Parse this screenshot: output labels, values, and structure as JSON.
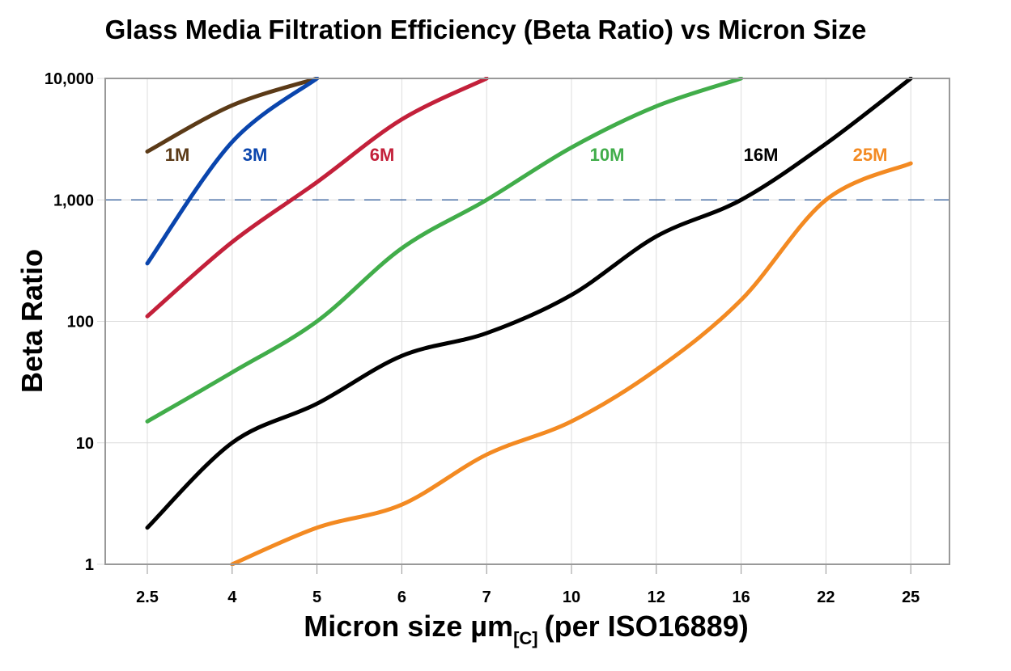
{
  "chart_data": {
    "type": "line",
    "title": "Glass Media Filtration Efficiency (Beta Ratio) vs Micron Size",
    "xlabel": "Micron size µm",
    "xlabel_subscript": "[C]",
    "xlabel_suffix": "(per ISO16889)",
    "ylabel": "Beta Ratio",
    "y_scale": "log",
    "ylim": [
      1,
      10000
    ],
    "categories": [
      "2.5",
      "4",
      "5",
      "6",
      "7",
      "10",
      "12",
      "16",
      "22",
      "25"
    ],
    "ytick_labels": [
      "1",
      "10",
      "100",
      "1,000",
      "10,000"
    ],
    "ytick_values": [
      1,
      10,
      100,
      1000,
      10000
    ],
    "grid": true,
    "reference_line": {
      "value": 1000,
      "style": "dashed",
      "color": "#4a6fa5"
    },
    "series": [
      {
        "name": "1M",
        "color": "#5b3a17",
        "values": [
          2500,
          6000,
          10000,
          null,
          null,
          null,
          null,
          null,
          null,
          null
        ]
      },
      {
        "name": "3M",
        "color": "#0a45ad",
        "values": [
          300,
          3000,
          10000,
          null,
          null,
          null,
          null,
          null,
          null,
          null
        ]
      },
      {
        "name": "6M",
        "color": "#c3203a",
        "values": [
          110,
          450,
          1400,
          4600,
          10000,
          null,
          null,
          null,
          null,
          null
        ]
      },
      {
        "name": "10M",
        "color": "#41ad4a",
        "values": [
          15,
          38,
          100,
          400,
          1000,
          2700,
          5900,
          10000,
          null,
          null
        ]
      },
      {
        "name": "16M",
        "color": "#000000",
        "values": [
          2,
          10,
          21,
          52,
          80,
          165,
          500,
          1000,
          2900,
          10000
        ]
      },
      {
        "name": "25M",
        "color": "#f38a22",
        "values": [
          null,
          1,
          2,
          3.1,
          8,
          15,
          40,
          150,
          1000,
          2000
        ]
      }
    ]
  }
}
